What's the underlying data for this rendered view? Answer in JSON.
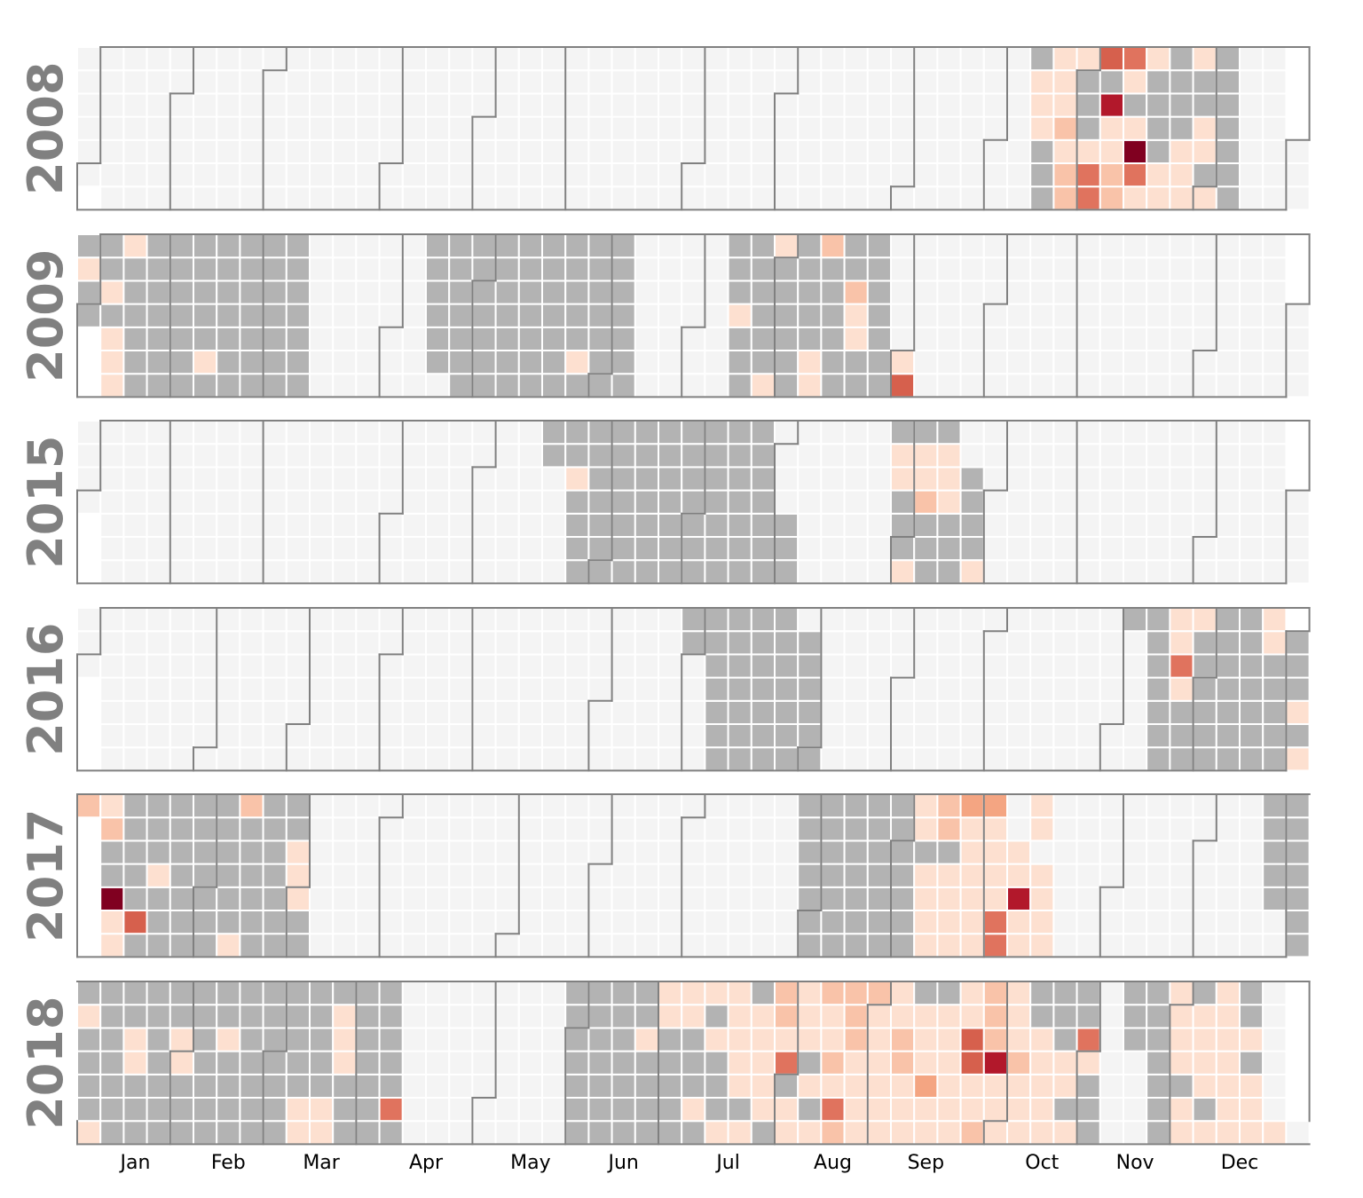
{
  "chart_data": {
    "type": "heatmap",
    "subtype": "calendar",
    "title": "",
    "xlabel": "",
    "ylabel": "",
    "week_start": "Monday",
    "month_labels": [
      "Jan",
      "Feb",
      "Mar",
      "Apr",
      "May",
      "Jun",
      "Jul",
      "Aug",
      "Sep",
      "Oct",
      "Nov",
      "Dec"
    ],
    "colors": {
      "empty": "#f4f4f4",
      "filled_zero": "#b3b3b3",
      "cell_border": "#ffffff",
      "month_outline": "#808080",
      "year_label": "#808080",
      "scale": [
        "#fde0d0",
        "#f9c3a9",
        "#f4a582",
        "#e0735e",
        "#d6604d",
        "#b2182b",
        "#800020"
      ]
    },
    "color_scale": {
      "min": 1,
      "max": 7
    },
    "legend": "none",
    "years": [
      {
        "year": "2008",
        "gray_ranges": [
          [
            "2008-10-13",
            "2008-12-14"
          ]
        ],
        "values": [
          [
            "2008-10-16",
            1
          ],
          [
            "2008-10-17",
            1
          ],
          [
            "2008-10-18",
            1
          ],
          [
            "2008-10-20",
            2
          ],
          [
            "2008-10-21",
            2
          ],
          [
            "2008-10-22",
            1
          ],
          [
            "2008-10-23",
            2
          ],
          [
            "2008-10-24",
            1
          ],
          [
            "2008-10-25",
            1
          ],
          [
            "2008-10-26",
            1
          ],
          [
            "2008-10-27",
            4
          ],
          [
            "2008-10-28",
            4
          ],
          [
            "2008-10-29",
            1
          ],
          [
            "2008-10-26",
            1
          ],
          [
            "2008-11-02",
            1
          ],
          [
            "2008-11-03",
            2
          ],
          [
            "2008-11-04",
            2
          ],
          [
            "2008-11-05",
            1
          ],
          [
            "2008-11-06",
            1
          ],
          [
            "2008-11-07",
            6
          ],
          [
            "2008-11-09",
            5
          ],
          [
            "2008-11-10",
            1
          ],
          [
            "2008-11-11",
            4
          ],
          [
            "2008-11-12",
            7
          ],
          [
            "2008-11-13",
            1
          ],
          [
            "2008-11-15",
            1
          ],
          [
            "2008-11-16",
            4
          ],
          [
            "2008-11-17",
            1
          ],
          [
            "2008-11-18",
            1
          ],
          [
            "2008-11-23",
            1
          ],
          [
            "2008-11-24",
            1
          ],
          [
            "2008-11-25",
            1
          ],
          [
            "2008-11-26",
            1
          ],
          [
            "2008-12-01",
            1
          ],
          [
            "2008-12-03",
            1
          ],
          [
            "2008-12-04",
            1
          ],
          [
            "2008-12-07",
            1
          ]
        ]
      },
      {
        "year": "2009",
        "gray_ranges": [
          [
            "2009-01-01",
            "2009-03-08"
          ],
          [
            "2009-04-14",
            "2009-06-14"
          ],
          [
            "2009-07-13",
            "2009-08-30"
          ]
        ],
        "values": [
          [
            "2009-01-03",
            1
          ],
          [
            "2009-01-05",
            1
          ],
          [
            "2009-01-06",
            1
          ],
          [
            "2009-01-07",
            1
          ],
          [
            "2009-01-09",
            1
          ],
          [
            "2009-01-18",
            1
          ],
          [
            "2009-02-03",
            1
          ],
          [
            "2009-05-26",
            1
          ],
          [
            "2009-07-16",
            1
          ],
          [
            "2009-07-20",
            1
          ],
          [
            "2009-08-02",
            1
          ],
          [
            "2009-08-03",
            1
          ],
          [
            "2009-08-04",
            1
          ],
          [
            "2009-08-16",
            2
          ],
          [
            "2009-08-19",
            1
          ],
          [
            "2009-08-20",
            1
          ],
          [
            "2009-08-21",
            2
          ],
          [
            "2009-08-31",
            5
          ],
          [
            "2009-09-01",
            1
          ]
        ]
      },
      {
        "year": "2015",
        "gray_ranges": [
          [
            "2015-05-23",
            "2015-07-29"
          ],
          [
            "2015-08-31",
            "2015-09-25"
          ]
        ],
        "values": [
          [
            "2015-05-29",
            1
          ],
          [
            "2015-08-31",
            1
          ],
          [
            "2015-09-04",
            1
          ],
          [
            "2015-09-05",
            1
          ],
          [
            "2015-09-10",
            2
          ],
          [
            "2015-09-11",
            1
          ],
          [
            "2015-09-12",
            1
          ],
          [
            "2015-09-17",
            1
          ],
          [
            "2015-09-18",
            1
          ],
          [
            "2015-09-19",
            1
          ],
          [
            "2015-09-21",
            1
          ]
        ]
      },
      {
        "year": "2016",
        "gray_ranges": [
          [
            "2016-07-02",
            "2016-08-06"
          ],
          [
            "2016-11-13",
            "2016-12-31"
          ]
        ],
        "values": [
          [
            "2016-11-24",
            1
          ],
          [
            "2016-11-25",
            4
          ],
          [
            "2016-11-26",
            1
          ],
          [
            "2016-11-27",
            1
          ],
          [
            "2016-12-04",
            1
          ],
          [
            "2016-12-24",
            1
          ],
          [
            "2016-12-25",
            1
          ],
          [
            "2016-12-26",
            1
          ],
          [
            "2016-12-28",
            1
          ]
        ]
      },
      {
        "year": "2017",
        "gray_ranges": [
          [
            "2017-01-01",
            "2017-03-05"
          ],
          [
            "2017-07-31",
            "2017-09-30"
          ],
          [
            "2017-12-20",
            "2017-12-31"
          ]
        ],
        "values": [
          [
            "2017-01-01",
            2
          ],
          [
            "2017-01-02",
            1
          ],
          [
            "2017-01-03",
            1
          ],
          [
            "2017-01-04",
            7
          ],
          [
            "2017-01-07",
            2
          ],
          [
            "2017-01-08",
            1
          ],
          [
            "2017-01-10",
            5
          ],
          [
            "2017-01-19",
            1
          ],
          [
            "2017-02-06",
            1
          ],
          [
            "2017-02-19",
            2
          ],
          [
            "2017-03-01",
            1
          ],
          [
            "2017-03-02",
            1
          ],
          [
            "2017-03-03",
            1
          ],
          [
            "2017-09-04",
            1
          ],
          [
            "2017-09-05",
            1
          ],
          [
            "2017-09-06",
            1
          ],
          [
            "2017-09-07",
            1
          ],
          [
            "2017-09-09",
            1
          ],
          [
            "2017-09-10",
            1
          ],
          [
            "2017-09-11",
            1
          ],
          [
            "2017-09-12",
            1
          ],
          [
            "2017-09-13",
            1
          ],
          [
            "2017-09-14",
            1
          ],
          [
            "2017-09-16",
            2
          ],
          [
            "2017-09-17",
            2
          ],
          [
            "2017-09-18",
            1
          ],
          [
            "2017-09-19",
            1
          ],
          [
            "2017-09-20",
            1
          ],
          [
            "2017-09-21",
            1
          ],
          [
            "2017-09-22",
            1
          ],
          [
            "2017-09-23",
            1
          ],
          [
            "2017-09-24",
            3
          ],
          [
            "2017-09-25",
            4
          ],
          [
            "2017-09-26",
            4
          ],
          [
            "2017-09-27",
            1
          ],
          [
            "2017-09-28",
            1
          ],
          [
            "2017-09-29",
            1
          ],
          [
            "2017-09-30",
            1
          ],
          [
            "2017-10-01",
            3
          ],
          [
            "2017-10-02",
            1
          ],
          [
            "2017-10-03",
            1
          ],
          [
            "2017-10-04",
            6
          ],
          [
            "2017-10-05",
            1
          ],
          [
            "2017-10-06",
            1
          ],
          [
            "2017-10-09",
            1
          ],
          [
            "2017-10-10",
            1
          ],
          [
            "2017-10-11",
            1
          ],
          [
            "2017-10-12",
            1
          ],
          [
            "2017-10-14",
            1
          ],
          [
            "2017-10-15",
            1
          ]
        ]
      },
      {
        "year": "2018",
        "gray_ranges": [
          [
            "2018-01-01",
            "2018-04-08"
          ],
          [
            "2018-05-28",
            "2018-11-04"
          ],
          [
            "2018-11-16",
            "2018-12-23"
          ]
        ],
        "values": [
          [
            "2018-01-01",
            1
          ],
          [
            "2018-01-06",
            1
          ],
          [
            "2018-01-18",
            1
          ],
          [
            "2018-01-19",
            1
          ],
          [
            "2018-02-01",
            1
          ],
          [
            "2018-02-02",
            1
          ],
          [
            "2018-02-16",
            1
          ],
          [
            "2018-03-05",
            1
          ],
          [
            "2018-03-06",
            1
          ],
          [
            "2018-03-12",
            1
          ],
          [
            "2018-03-13",
            1
          ],
          [
            "2018-03-22",
            1
          ],
          [
            "2018-03-23",
            1
          ],
          [
            "2018-03-24",
            1
          ],
          [
            "2018-04-03",
            4
          ],
          [
            "2018-06-22",
            1
          ],
          [
            "2018-06-30",
            1
          ],
          [
            "2018-07-01",
            1
          ],
          [
            "2018-07-03",
            1
          ],
          [
            "2018-07-07",
            1
          ],
          [
            "2018-07-08",
            1
          ],
          [
            "2018-07-09",
            1
          ],
          [
            "2018-07-13",
            1
          ],
          [
            "2018-07-15",
            1
          ],
          [
            "2018-07-16",
            1
          ],
          [
            "2018-07-18",
            1
          ],
          [
            "2018-07-19",
            1
          ],
          [
            "2018-07-20",
            1
          ],
          [
            "2018-07-21",
            1
          ],
          [
            "2018-07-22",
            1
          ],
          [
            "2018-07-24",
            1
          ],
          [
            "2018-07-25",
            1
          ],
          [
            "2018-07-26",
            1
          ],
          [
            "2018-07-27",
            1
          ],
          [
            "2018-07-28",
            1
          ],
          [
            "2018-07-30",
            1
          ],
          [
            "2018-07-31",
            1
          ],
          [
            "2018-08-02",
            4
          ],
          [
            "2018-08-03",
            1
          ],
          [
            "2018-08-04",
            2
          ],
          [
            "2018-08-05",
            2
          ],
          [
            "2018-08-06",
            1
          ],
          [
            "2018-08-08",
            1
          ],
          [
            "2018-08-10",
            1
          ],
          [
            "2018-08-11",
            1
          ],
          [
            "2018-08-12",
            1
          ],
          [
            "2018-08-13",
            2
          ],
          [
            "2018-08-14",
            4
          ],
          [
            "2018-08-15",
            1
          ],
          [
            "2018-08-16",
            2
          ],
          [
            "2018-08-17",
            1
          ],
          [
            "2018-08-18",
            1
          ],
          [
            "2018-08-19",
            2
          ],
          [
            "2018-08-20",
            1
          ],
          [
            "2018-08-21",
            1
          ],
          [
            "2018-08-22",
            1
          ],
          [
            "2018-08-23",
            1
          ],
          [
            "2018-08-24",
            2
          ],
          [
            "2018-08-25",
            2
          ],
          [
            "2018-08-26",
            2
          ],
          [
            "2018-08-27",
            1
          ],
          [
            "2018-08-28",
            1
          ],
          [
            "2018-08-29",
            1
          ],
          [
            "2018-08-30",
            1
          ],
          [
            "2018-08-31",
            1
          ],
          [
            "2018-09-01",
            1
          ],
          [
            "2018-09-02",
            2
          ],
          [
            "2018-09-03",
            1
          ],
          [
            "2018-09-04",
            1
          ],
          [
            "2018-09-05",
            1
          ],
          [
            "2018-09-06",
            2
          ],
          [
            "2018-09-07",
            2
          ],
          [
            "2018-09-08",
            1
          ],
          [
            "2018-09-09",
            1
          ],
          [
            "2018-09-10",
            1
          ],
          [
            "2018-09-11",
            1
          ],
          [
            "2018-09-12",
            3
          ],
          [
            "2018-09-13",
            1
          ],
          [
            "2018-09-14",
            1
          ],
          [
            "2018-09-15",
            1
          ],
          [
            "2018-09-17",
            1
          ],
          [
            "2018-09-18",
            1
          ],
          [
            "2018-09-19",
            1
          ],
          [
            "2018-09-20",
            1
          ],
          [
            "2018-09-21",
            1
          ],
          [
            "2018-09-22",
            1
          ],
          [
            "2018-09-24",
            2
          ],
          [
            "2018-09-25",
            1
          ],
          [
            "2018-09-26",
            1
          ],
          [
            "2018-09-27",
            5
          ],
          [
            "2018-09-28",
            5
          ],
          [
            "2018-09-29",
            1
          ],
          [
            "2018-09-30",
            1
          ],
          [
            "2018-10-01",
            1
          ],
          [
            "2018-10-02",
            1
          ],
          [
            "2018-10-03",
            1
          ],
          [
            "2018-10-04",
            6
          ],
          [
            "2018-10-05",
            2
          ],
          [
            "2018-10-06",
            2
          ],
          [
            "2018-10-07",
            2
          ],
          [
            "2018-10-08",
            1
          ],
          [
            "2018-10-09",
            1
          ],
          [
            "2018-10-10",
            1
          ],
          [
            "2018-10-11",
            2
          ],
          [
            "2018-10-12",
            1
          ],
          [
            "2018-10-13",
            1
          ],
          [
            "2018-10-14",
            1
          ],
          [
            "2018-10-15",
            1
          ],
          [
            "2018-10-16",
            1
          ],
          [
            "2018-10-17",
            1
          ],
          [
            "2018-10-18",
            1
          ],
          [
            "2018-10-19",
            1
          ],
          [
            "2018-10-22",
            1
          ],
          [
            "2018-10-24",
            1
          ],
          [
            "2018-10-25",
            1
          ],
          [
            "2018-11-01",
            1
          ],
          [
            "2018-11-02",
            4
          ],
          [
            "2018-11-26",
            1
          ],
          [
            "2018-11-27",
            1
          ],
          [
            "2018-11-29",
            1
          ],
          [
            "2018-11-30",
            1
          ],
          [
            "2018-12-01",
            1
          ],
          [
            "2018-12-02",
            1
          ],
          [
            "2018-12-03",
            1
          ],
          [
            "2018-12-05",
            1
          ],
          [
            "2018-12-06",
            1
          ],
          [
            "2018-12-07",
            1
          ],
          [
            "2018-12-08",
            1
          ],
          [
            "2018-12-10",
            1
          ],
          [
            "2018-12-11",
            1
          ],
          [
            "2018-12-12",
            1
          ],
          [
            "2018-12-13",
            1
          ],
          [
            "2018-12-14",
            1
          ],
          [
            "2018-12-15",
            1
          ],
          [
            "2018-12-16",
            1
          ],
          [
            "2018-12-17",
            1
          ],
          [
            "2018-12-18",
            1
          ],
          [
            "2018-12-19",
            1
          ],
          [
            "2018-12-21",
            1
          ],
          [
            "2018-12-24",
            1
          ]
        ]
      }
    ]
  }
}
